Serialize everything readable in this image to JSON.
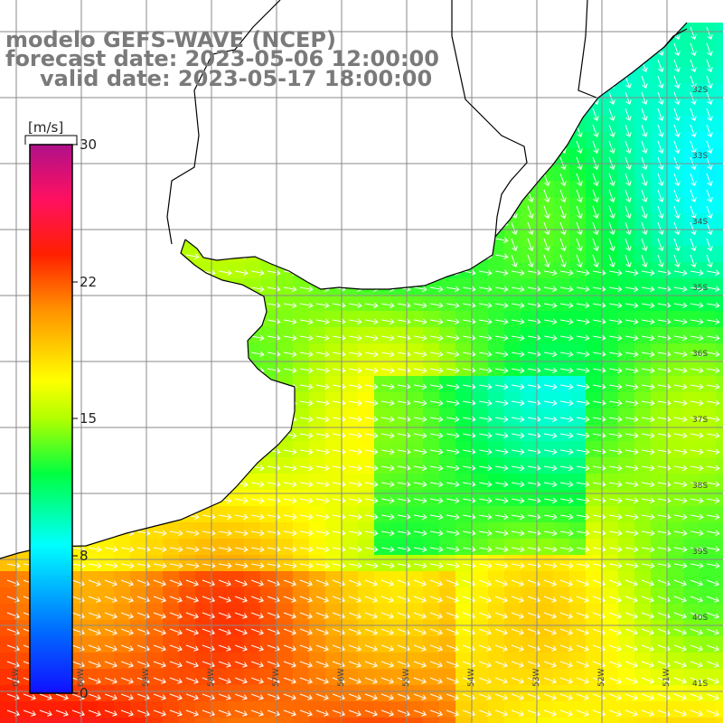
{
  "title": {
    "line1": "modelo GEFS-WAVE (NCEP)",
    "line2": "forecast date: 2023-05-06 12:00:00",
    "line3": "valid date: 2023-05-17 18:00:00"
  },
  "colorbar": {
    "unit": "[m/s]",
    "ticks": [
      "30",
      "22",
      "15",
      "8",
      "0"
    ],
    "min": 0,
    "max": 30
  },
  "axes": {
    "lat_labels": [
      "32S",
      "33S",
      "34S",
      "35S",
      "36S",
      "37S",
      "38S",
      "39S",
      "40S",
      "41S"
    ],
    "lon_labels": [
      "61W",
      "60W",
      "59W",
      "58W",
      "57W",
      "56W",
      "55W",
      "54W",
      "53W",
      "52W",
      "51W"
    ]
  },
  "colors": {
    "land": "#ffffff",
    "grid": "#888888",
    "coast": "#000000",
    "arrows": "#ffffff",
    "title": "#7a7a7a"
  }
}
